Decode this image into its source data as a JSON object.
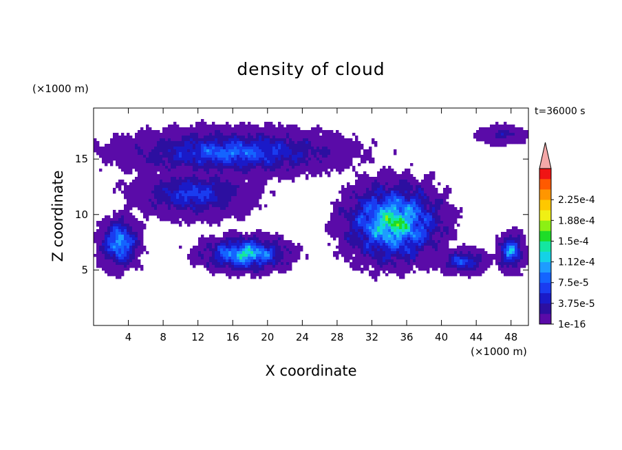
{
  "chart_data": {
    "type": "heatmap",
    "title": "density of cloud",
    "xlabel": "X coordinate",
    "ylabel": "Z coordinate",
    "x_unit": "(×1000 m)",
    "y_unit": "(×1000 m)",
    "time_label": "t=36000 s",
    "xlim": [
      0,
      50
    ],
    "ylim": [
      0,
      19.6
    ],
    "x_ticks": [
      "4",
      "8",
      "12",
      "16",
      "20",
      "24",
      "28",
      "32",
      "36",
      "40",
      "44",
      "48"
    ],
    "y_ticks": [
      "5",
      "10",
      "15"
    ],
    "colorbar": {
      "tick_labels": [
        "1e-16",
        "3.75e-5",
        "7.5e-5",
        "1.12e-4",
        "1.5e-4",
        "1.88e-4",
        "2.25e-4"
      ],
      "levels": [
        1e-16,
        1.875e-05,
        3.75e-05,
        5.625e-05,
        7.5e-05,
        9.375e-05,
        0.0001125,
        0.00013125,
        0.00015,
        0.00016875,
        0.0001875,
        0.00020625,
        0.000225,
        0.00024375,
        0.0002625
      ],
      "colors": [
        "#5a0ba8",
        "#2c0fa0",
        "#1a1ac8",
        "#1a3cf0",
        "#1464ff",
        "#1e9cff",
        "#14d2e6",
        "#14e6a0",
        "#1edc28",
        "#8cf014",
        "#f0f014",
        "#ffc800",
        "#ff9600",
        "#ff5a00",
        "#f01414"
      ],
      "extend_color": "#f4a8a8",
      "extend": "max"
    },
    "cloud_regions": [
      {
        "x": [
          0,
          32
        ],
        "z": [
          13,
          18.2
        ],
        "peak": 9.4e-05
      },
      {
        "x": [
          3,
          20
        ],
        "z": [
          9.2,
          14.5
        ],
        "peak": 7.5e-05
      },
      {
        "x": [
          0,
          6
        ],
        "z": [
          4.5,
          10.4
        ],
        "peak": 0.00013
      },
      {
        "x": [
          11,
          24
        ],
        "z": [
          4.4,
          8.5
        ],
        "peak": 0.00015
      },
      {
        "x": [
          27,
          42
        ],
        "z": [
          4.5,
          14.0
        ],
        "peak": 0.00017
      },
      {
        "x": [
          39,
          46
        ],
        "z": [
          4.4,
          7.2
        ],
        "peak": 8e-05
      },
      {
        "x": [
          44,
          50
        ],
        "z": [
          16.2,
          18.2
        ],
        "peak": 4e-05
      },
      {
        "x": [
          46,
          50
        ],
        "z": [
          4.5,
          8.8
        ],
        "peak": 0.00012
      }
    ]
  }
}
